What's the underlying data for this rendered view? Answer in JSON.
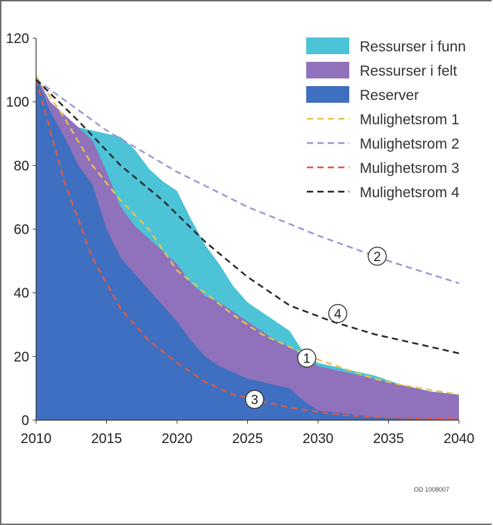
{
  "chart_data": {
    "type": "area",
    "xlim": [
      2010,
      2040
    ],
    "ylim": [
      0,
      120
    ],
    "x_ticks": [
      "2010",
      "2015",
      "2020",
      "2025",
      "2030",
      "2035",
      "2040"
    ],
    "y_ticks": [
      "0",
      "20",
      "40",
      "60",
      "80",
      "100",
      "120"
    ],
    "legend_position": "top-right",
    "code": "OD 1008007",
    "areas": [
      {
        "name": "Ressurser i funn",
        "color": "#4cc3d6",
        "points": [
          [
            2010,
            108
          ],
          [
            2011,
            100
          ],
          [
            2012,
            96
          ],
          [
            2013,
            92
          ],
          [
            2014,
            91
          ],
          [
            2015,
            90
          ],
          [
            2016,
            89
          ],
          [
            2017,
            85
          ],
          [
            2018,
            79
          ],
          [
            2019,
            75
          ],
          [
            2020,
            72
          ],
          [
            2021,
            63
          ],
          [
            2022,
            55
          ],
          [
            2023,
            49
          ],
          [
            2024,
            42
          ],
          [
            2025,
            37
          ],
          [
            2026,
            34
          ],
          [
            2027,
            31
          ],
          [
            2028,
            28
          ],
          [
            2029,
            21
          ],
          [
            2030,
            18
          ],
          [
            2032,
            16
          ],
          [
            2034,
            14
          ],
          [
            2036,
            11
          ],
          [
            2038,
            9
          ],
          [
            2040,
            8
          ]
        ]
      },
      {
        "name": "Ressurser i felt",
        "color": "#8f72bb",
        "points": [
          [
            2010,
            108
          ],
          [
            2011,
            100
          ],
          [
            2012,
            96
          ],
          [
            2013,
            92
          ],
          [
            2014,
            88
          ],
          [
            2015,
            78
          ],
          [
            2016,
            67
          ],
          [
            2017,
            61
          ],
          [
            2018,
            57
          ],
          [
            2019,
            53
          ],
          [
            2020,
            49
          ],
          [
            2021,
            43
          ],
          [
            2022,
            39
          ],
          [
            2023,
            37
          ],
          [
            2024,
            34
          ],
          [
            2025,
            31
          ],
          [
            2026,
            28
          ],
          [
            2027,
            25
          ],
          [
            2028,
            23
          ],
          [
            2029,
            20
          ],
          [
            2030,
            17
          ],
          [
            2032,
            15
          ],
          [
            2034,
            13
          ],
          [
            2036,
            11
          ],
          [
            2038,
            9
          ],
          [
            2040,
            8
          ]
        ]
      },
      {
        "name": "Reserver",
        "color": "#3f6fc0",
        "points": [
          [
            2010,
            108
          ],
          [
            2011,
            97
          ],
          [
            2012,
            89
          ],
          [
            2013,
            80
          ],
          [
            2014,
            74
          ],
          [
            2015,
            60
          ],
          [
            2016,
            51
          ],
          [
            2017,
            46
          ],
          [
            2018,
            41
          ],
          [
            2019,
            36
          ],
          [
            2020,
            31
          ],
          [
            2021,
            25
          ],
          [
            2022,
            20
          ],
          [
            2023,
            17
          ],
          [
            2024,
            15
          ],
          [
            2025,
            13
          ],
          [
            2026,
            12
          ],
          [
            2027,
            11
          ],
          [
            2028,
            10
          ],
          [
            2029,
            6
          ],
          [
            2030,
            3
          ],
          [
            2032,
            2
          ],
          [
            2034,
            1
          ],
          [
            2036,
            0.5
          ],
          [
            2038,
            0.3
          ],
          [
            2040,
            0
          ]
        ]
      }
    ],
    "lines": [
      {
        "name": "Mulighetsrom 1",
        "color": "#e8c24a",
        "label": "1",
        "label_at": [
          2029.2,
          19.5
        ],
        "points": [
          [
            2010,
            108
          ],
          [
            2012,
            95
          ],
          [
            2014,
            80
          ],
          [
            2016,
            69
          ],
          [
            2018,
            60
          ],
          [
            2020,
            47
          ],
          [
            2022,
            40
          ],
          [
            2024,
            33
          ],
          [
            2026,
            27
          ],
          [
            2028,
            23
          ],
          [
            2030,
            19
          ],
          [
            2032,
            16
          ],
          [
            2034,
            13
          ],
          [
            2036,
            11
          ],
          [
            2038,
            9.5
          ],
          [
            2040,
            8
          ]
        ]
      },
      {
        "name": "Mulighetsrom 2",
        "color": "#9b94d6",
        "label": "2",
        "label_at": [
          2034.2,
          51.5
        ],
        "points": [
          [
            2010,
            107
          ],
          [
            2015,
            91
          ],
          [
            2020,
            78
          ],
          [
            2025,
            67
          ],
          [
            2030,
            58
          ],
          [
            2035,
            50
          ],
          [
            2040,
            43
          ]
        ]
      },
      {
        "name": "Mulighetsrom 3",
        "color": "#e05a45",
        "label": "3",
        "label_at": [
          2025.5,
          6.5
        ],
        "points": [
          [
            2010,
            107
          ],
          [
            2012,
            75
          ],
          [
            2014,
            51
          ],
          [
            2016,
            35
          ],
          [
            2018,
            25
          ],
          [
            2020,
            18
          ],
          [
            2022,
            12
          ],
          [
            2024,
            8
          ],
          [
            2026,
            6
          ],
          [
            2028,
            4
          ],
          [
            2030,
            2.5
          ],
          [
            2032,
            1.5
          ],
          [
            2034,
            1
          ],
          [
            2036,
            0.7
          ],
          [
            2038,
            0.5
          ],
          [
            2040,
            0.3
          ]
        ]
      },
      {
        "name": "Mulighetsrom 4",
        "color": "#222222",
        "label": "4",
        "label_at": [
          2031.4,
          33.5
        ],
        "points": [
          [
            2010,
            107
          ],
          [
            2013,
            94
          ],
          [
            2016,
            80
          ],
          [
            2019,
            69
          ],
          [
            2022,
            56
          ],
          [
            2025,
            45
          ],
          [
            2028,
            36
          ],
          [
            2031,
            31
          ],
          [
            2034,
            27
          ],
          [
            2037,
            24
          ],
          [
            2040,
            21
          ]
        ]
      }
    ]
  }
}
